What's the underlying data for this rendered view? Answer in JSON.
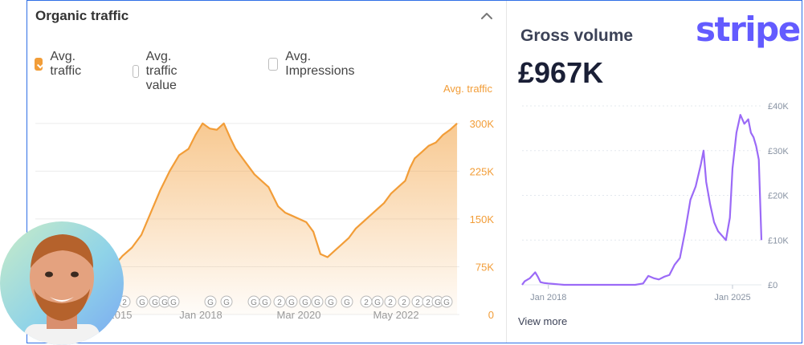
{
  "organic_panel": {
    "title": "Organic traffic",
    "legend": [
      {
        "label": "Avg. traffic",
        "checked": true
      },
      {
        "label": "Avg. traffic value",
        "checked": false
      },
      {
        "label": "Avg. Impressions",
        "checked": false
      }
    ],
    "series_caption": "Avg. traffic"
  },
  "gross_panel": {
    "brand": "stripe",
    "title": "Gross volume",
    "value": "£967K",
    "view_more": "View more"
  },
  "colors": {
    "orange": "#f29d38",
    "purple": "#9b6af7",
    "stripe_brand": "#635bff",
    "frame_border": "#2f6fe6"
  },
  "icons": {
    "collapse": "chevron-up-icon",
    "annotation_markers": "google-update-marker-icon"
  },
  "chart_data": [
    {
      "type": "area",
      "series": [
        {
          "name": "Avg. traffic",
          "x": [
            2015.4,
            2015.6,
            2015.8,
            2016.0,
            2016.2,
            2016.4,
            2016.6,
            2016.8,
            2017.0,
            2017.2,
            2017.4,
            2017.6,
            2017.8,
            2018.0,
            2018.2,
            2018.35,
            2018.5,
            2018.65,
            2018.8,
            2018.95,
            2019.1,
            2019.2,
            2019.3,
            2019.45,
            2019.6,
            2019.75,
            2019.9,
            2020.0,
            2020.1,
            2020.25,
            2020.4,
            2020.55,
            2020.7,
            2020.85,
            2021.0,
            2021.15,
            2021.3,
            2021.45,
            2021.6,
            2021.75,
            2021.9,
            2022.05,
            2022.2,
            2022.35,
            2022.5,
            2022.65,
            2022.8,
            2022.9,
            2023.0,
            2023.15,
            2023.3,
            2023.45,
            2023.6,
            2023.75,
            2023.9
          ],
          "values": [
            5000,
            8000,
            12000,
            22000,
            35000,
            55000,
            75000,
            92000,
            105000,
            125000,
            160000,
            195000,
            225000,
            250000,
            260000,
            282000,
            300000,
            292000,
            290000,
            300000,
            275000,
            260000,
            250000,
            235000,
            220000,
            210000,
            200000,
            185000,
            170000,
            160000,
            155000,
            150000,
            145000,
            130000,
            95000,
            90000,
            100000,
            110000,
            120000,
            135000,
            145000,
            155000,
            165000,
            175000,
            190000,
            200000,
            210000,
            230000,
            245000,
            255000,
            265000,
            270000,
            282000,
            290000,
            300000
          ]
        }
      ],
      "xticks": [
        "2015",
        "Jan 2018",
        "Mar 2020",
        "May 2022"
      ],
      "ylabel": "Avg. traffic",
      "yticks": [
        "0",
        "75K",
        "150K",
        "225K",
        "300K"
      ],
      "ylim": [
        0,
        330000
      ],
      "grid": true,
      "annotation_markers": [
        "2",
        "G",
        "G",
        "G",
        "G",
        "G",
        "G",
        "G",
        "G",
        "G",
        "G",
        "2",
        "G",
        "G",
        "G",
        "G",
        "G",
        "G",
        "G",
        "G",
        "G",
        "G",
        "G",
        "G",
        "2",
        "G",
        "G",
        "G",
        "G",
        "G",
        "2",
        "G",
        "G",
        "G",
        "G",
        "G",
        "G",
        "G",
        "2",
        "G",
        "G",
        "G",
        "2",
        "G",
        "G",
        "G",
        "G",
        "G",
        "G",
        "2",
        "G",
        "G",
        "G",
        "G",
        "G",
        "G",
        "G",
        "G",
        "G",
        "2",
        "G",
        "G",
        "G",
        "G",
        "G",
        "2",
        "G",
        "G",
        "G",
        "G",
        "G",
        "G",
        "G",
        "2"
      ]
    },
    {
      "type": "line",
      "series": [
        {
          "name": "Gross volume",
          "x": [
            2017.0,
            2017.1,
            2017.3,
            2017.5,
            2017.6,
            2017.7,
            2017.85,
            2018.0,
            2018.2,
            2018.4,
            2018.6,
            2018.9,
            2019.5,
            2020.2,
            2021.0,
            2021.3,
            2021.6,
            2021.8,
            2022.0,
            2022.2,
            2022.4,
            2022.6,
            2022.8,
            2023.0,
            2023.2,
            2023.4,
            2023.6,
            2023.8,
            2023.9,
            2024.0,
            2024.15,
            2024.3,
            2024.45,
            2024.6,
            2024.75,
            2024.9,
            2025.0,
            2025.15,
            2025.3,
            2025.45,
            2025.6,
            2025.7,
            2025.8,
            2025.9,
            2026.0,
            2026.1
          ],
          "values": [
            0,
            800,
            1500,
            2800,
            1800,
            600,
            400,
            300,
            200,
            100,
            0,
            0,
            0,
            0,
            0,
            0,
            300,
            2000,
            1500,
            1200,
            1800,
            2200,
            4500,
            6000,
            12000,
            19000,
            22000,
            27000,
            30000,
            23000,
            18000,
            14000,
            12000,
            11000,
            10000,
            15000,
            26000,
            34000,
            38000,
            36000,
            37000,
            34000,
            33000,
            31000,
            28000,
            10000
          ]
        }
      ],
      "xticks": [
        "Jan 2018",
        "Jan 2025"
      ],
      "yticks": [
        "£0",
        "£10K",
        "£20K",
        "£30K",
        "£40K"
      ],
      "ylim": [
        0,
        40000
      ],
      "grid": true
    }
  ]
}
